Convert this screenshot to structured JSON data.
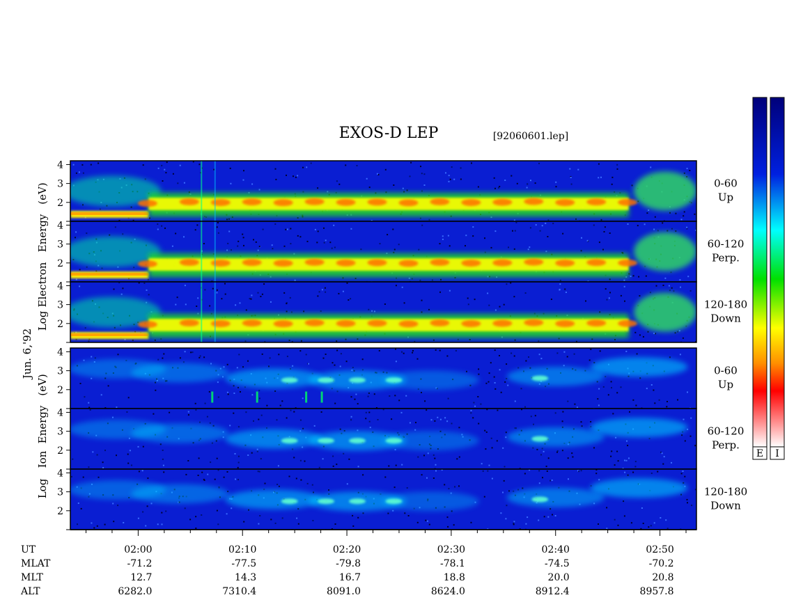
{
  "chart_data": {
    "type": "heatmap",
    "title": "EXOS-D LEP",
    "file_label": "[92060601.lep]",
    "date_label": "Jun. 6,'92",
    "electron_ylabel": [
      "Log",
      "Electron",
      "Energy",
      "(eV)"
    ],
    "ion_ylabel": [
      "Log",
      "Ion",
      "Energy",
      "(eV)"
    ],
    "yticks": [
      "2",
      "3",
      "4"
    ],
    "ylim": [
      1,
      4.2
    ],
    "xlim_minutes": [
      113.5,
      173.5
    ],
    "x_tick_labels": [
      "02:00",
      "02:10",
      "02:20",
      "02:30",
      "02:40",
      "02:50"
    ],
    "panels": [
      {
        "species": "electron",
        "angle": "0-60",
        "direction": "Up"
      },
      {
        "species": "electron",
        "angle": "60-120",
        "direction": "Perp."
      },
      {
        "species": "electron",
        "angle": "120-180",
        "direction": "Down"
      },
      {
        "species": "ion",
        "angle": "0-60",
        "direction": "Up"
      },
      {
        "species": "ion",
        "angle": "60-120",
        "direction": "Perp."
      },
      {
        "species": "ion",
        "angle": "120-180",
        "direction": "Down"
      }
    ],
    "colorbars": [
      "E",
      "I"
    ],
    "ephemeris": {
      "row_labels": [
        "UT",
        "MLAT",
        "MLT",
        "ALT"
      ],
      "UT": [
        "02:00",
        "02:10",
        "02:20",
        "02:30",
        "02:40",
        "02:50"
      ],
      "MLAT": [
        "-71.2",
        "-77.5",
        "-79.8",
        "-78.1",
        "-74.5",
        "-70.2"
      ],
      "MLT": [
        "12.7",
        "14.3",
        "16.7",
        "18.8",
        "20.0",
        "20.8"
      ],
      "ALT": [
        "6282.0",
        "7310.4",
        "8091.0",
        "8624.0",
        "8912.4",
        "8957.8"
      ]
    },
    "colors": {
      "background": "#0a1ed2",
      "colorscale": [
        "#f4f4f4",
        "#ff0000",
        "#ffaa00",
        "#ffff00",
        "#00dd00",
        "#00ffff",
        "#0040ff",
        "#0000aa"
      ]
    }
  }
}
